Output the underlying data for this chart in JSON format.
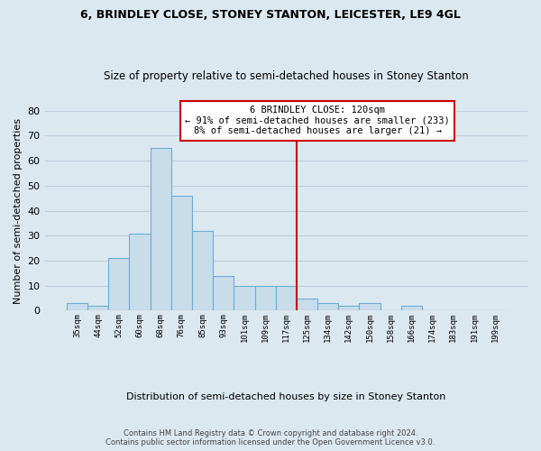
{
  "title": "6, BRINDLEY CLOSE, STONEY STANTON, LEICESTER, LE9 4GL",
  "subtitle": "Size of property relative to semi-detached houses in Stoney Stanton",
  "xlabel": "Distribution of semi-detached houses by size in Stoney Stanton",
  "ylabel": "Number of semi-detached properties",
  "bin_labels": [
    "35sqm",
    "44sqm",
    "52sqm",
    "60sqm",
    "68sqm",
    "76sqm",
    "85sqm",
    "93sqm",
    "101sqm",
    "109sqm",
    "117sqm",
    "125sqm",
    "134sqm",
    "142sqm",
    "150sqm",
    "158sqm",
    "166sqm",
    "174sqm",
    "183sqm",
    "191sqm",
    "199sqm"
  ],
  "bar_heights": [
    3,
    2,
    21,
    31,
    65,
    46,
    32,
    14,
    10,
    10,
    10,
    5,
    3,
    2,
    3,
    0,
    2,
    0,
    0,
    0,
    0
  ],
  "bar_color": "#c8dcea",
  "bar_edge_color": "#6aaed6",
  "background_color": "#dce8f0",
  "grid_color": "#c0cedc",
  "property_line_color": "#cc0000",
  "annotation_title": "6 BRINDLEY CLOSE: 120sqm",
  "annotation_line1": "← 91% of semi-detached houses are smaller (233)",
  "annotation_line2": "8% of semi-detached houses are larger (21) →",
  "annotation_box_color": "#ffffff",
  "annotation_box_edge_color": "#cc0000",
  "ylim": [
    0,
    80
  ],
  "yticks": [
    0,
    10,
    20,
    30,
    40,
    50,
    60,
    70,
    80
  ],
  "footer_line1": "Contains HM Land Registry data © Crown copyright and database right 2024.",
  "footer_line2": "Contains public sector information licensed under the Open Government Licence v3.0."
}
